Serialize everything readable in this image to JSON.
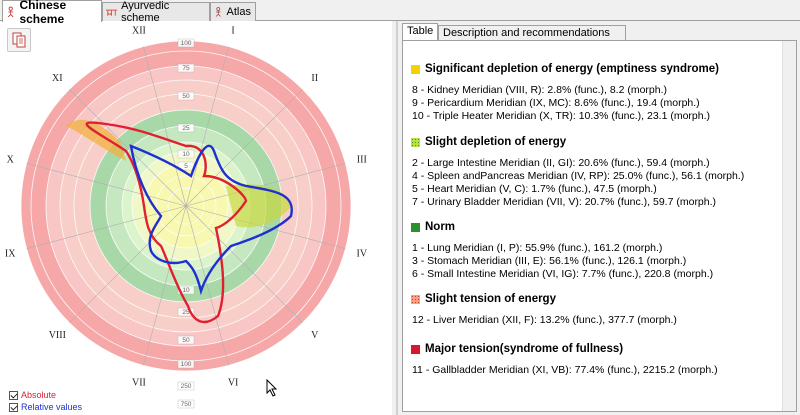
{
  "top_tabs": [
    {
      "label": "Chinese scheme",
      "active": true
    },
    {
      "label": "Ayurvedic scheme",
      "active": false
    },
    {
      "label": "Atlas",
      "active": false
    }
  ],
  "legend": {
    "absolute": "Absolute",
    "relative": "Relative values"
  },
  "radar": {
    "roman_labels": [
      "I",
      "II",
      "III",
      "IV",
      "V",
      "VI",
      "VII",
      "VIII",
      "IX",
      "X",
      "XI",
      "XII"
    ],
    "ring_labels": [
      "100",
      "75",
      "50",
      "25",
      "10",
      "5",
      "10",
      "25",
      "50",
      "100",
      "250",
      "750"
    ]
  },
  "right_tabs": [
    {
      "label": "Table",
      "active": true
    },
    {
      "label": "Description and recommendations",
      "active": false
    }
  ],
  "sections": [
    {
      "title": "Significant depletion of energy (emptiness syndrome)",
      "color": "#f2d200",
      "pattern": "solid",
      "items": [
        "8 - Kidney Meridian (VIII, R): 2.8% (func.), 8.2 (morph.)",
        "9 - Pericardium Meridian (IX, MC): 8.6% (func.), 19.4 (morph.)",
        "10 - Triple Heater Meridian (X, TR): 10.3% (func.), 23.1 (morph.)"
      ]
    },
    {
      "title": "Slight depletion of energy",
      "color": "#9ccc20",
      "pattern": "dots",
      "items": [
        "2 - Large Intestine Meridian (II, GI): 20.6% (func.), 59.4 (morph.)",
        "4 - Spleen andPancreas Meridian (IV, RP): 25.0% (func.), 56.1 (morph.)",
        "5 - Heart Meridian (V, C): 1.7% (func.), 47.5 (morph.)",
        "7 - Urinary Bladder Meridian (VII, V): 20.7% (func.), 59.7 (morph.)"
      ]
    },
    {
      "title": "Norm",
      "color": "#2f8f2f",
      "pattern": "solid",
      "items": [
        "1 - Lung Meridian (I, P): 55.9% (func.), 161.2 (morph.)",
        "3 - Stomach Meridian (III, E): 56.1% (func.), 126.1 (morph.)",
        "6 - Small Intestine Meridian (VI, IG): 7.7% (func.), 220.8 (morph.)"
      ]
    },
    {
      "title": "Slight tension of energy",
      "color": "#f08060",
      "pattern": "dots",
      "items": [
        "12 - Liver Meridian (XII, F): 13.2% (func.), 377.7 (morph.)"
      ]
    },
    {
      "title": "Major tension(syndrome of fullness)",
      "color": "#d81830",
      "pattern": "solid",
      "items": [
        "11 - Gallbladder Meridian (XI, VB): 77.4% (func.), 2215.2 (morph.)"
      ]
    }
  ]
}
